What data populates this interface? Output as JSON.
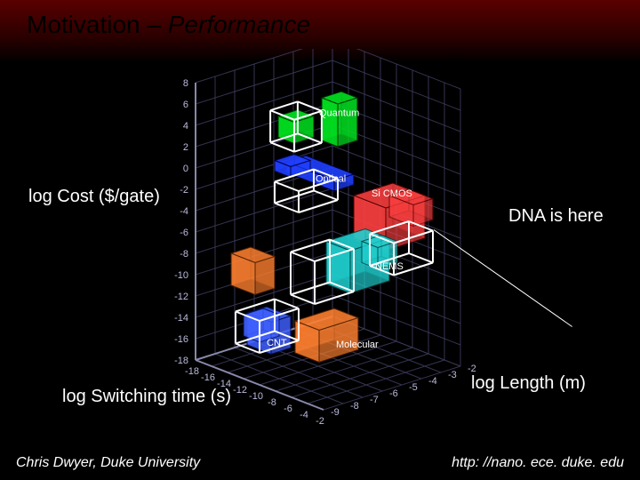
{
  "slide": {
    "title_plain": "Motivation – ",
    "title_em": "Performance",
    "footer_left": "Chris Dwyer, Duke University",
    "footer_right": "http: //nano. ece. duke. edu"
  },
  "axis_labels": {
    "z": "log Cost ($/gate)",
    "x": "log Switching time (s)",
    "y": "log Length (m)"
  },
  "annotations": {
    "dna": "DNA is here"
  },
  "chart": {
    "type": "3d-scatter-cubes",
    "background": "#000000",
    "grid_color": "#3a3a5a",
    "axis_line_color": "#8888aa",
    "tick_color": "#bbbbdd",
    "tick_fontsize": 11,
    "z_axis": {
      "min": -18,
      "max": 8,
      "step": 2,
      "ticks": [
        -18,
        -16,
        -14,
        -12,
        -10,
        -8,
        -6,
        -4,
        -2,
        0,
        2,
        4,
        6,
        8
      ]
    },
    "x_axis": {
      "min": -18,
      "max": -2,
      "step": 2,
      "ticks": [
        -18,
        -16,
        -14,
        -12,
        -10,
        -8,
        -6,
        -4,
        -2
      ]
    },
    "y_axis": {
      "min": -9,
      "max": -2,
      "step": 1,
      "ticks": [
        -9,
        -8,
        -7,
        -6,
        -5,
        -4,
        -3,
        -2
      ]
    },
    "tech_labels": [
      {
        "text": "Quantum",
        "color": "#ffffff"
      },
      {
        "text": "Optical",
        "color": "#ffffff"
      },
      {
        "text": "Si CMOS",
        "color": "#ffffff"
      },
      {
        "text": "NEMS",
        "color": "#ffffff"
      },
      {
        "text": "CNT",
        "color": "#ffffff"
      },
      {
        "text": "Molecular",
        "color": "#ffffff"
      }
    ],
    "series": [
      {
        "name": "Quantum",
        "color": "#00e020",
        "opacity": 0.9
      },
      {
        "name": "Optical",
        "color": "#2040ff",
        "opacity": 0.9
      },
      {
        "name": "SiCMOS",
        "color": "#ff4040",
        "opacity": 0.8
      },
      {
        "name": "NEMS",
        "color": "#20d0d0",
        "opacity": 0.85
      },
      {
        "name": "CNT",
        "color": "#4060ff",
        "opacity": 0.85
      },
      {
        "name": "Molecular",
        "color": "#ff8030",
        "opacity": 0.85
      },
      {
        "name": "DNA",
        "color": "#ffffff",
        "opacity": 0.0,
        "outline": "#ffffff"
      }
    ],
    "highlight_boxes": [
      {
        "outline": "#ffffff",
        "stroke_width": 2
      }
    ]
  }
}
